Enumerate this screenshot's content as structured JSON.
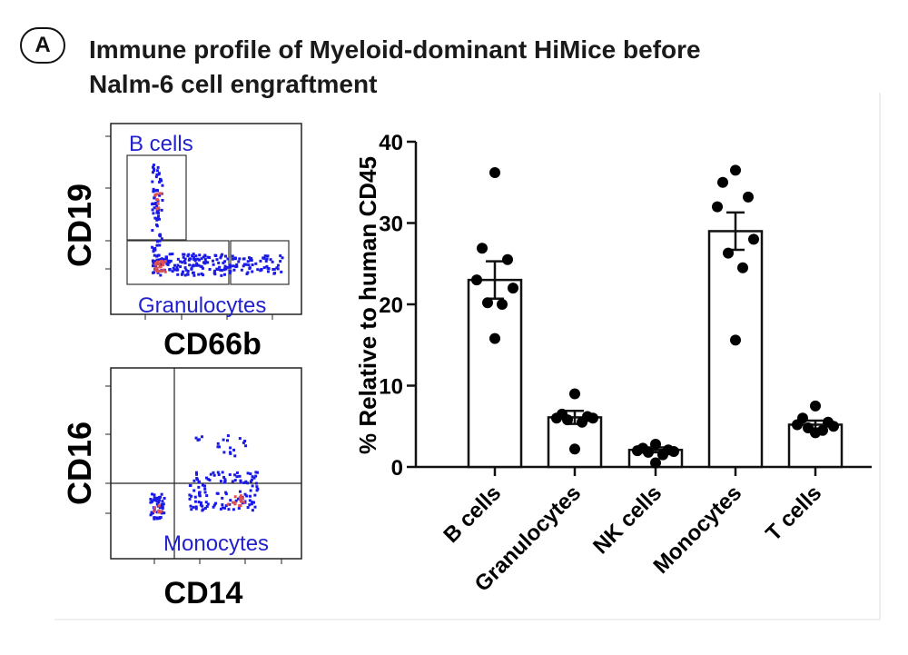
{
  "header": {
    "panel_letter": "A",
    "title_line1": "Immune profile of Myeloid-dominant HiMice before",
    "title_line2": "Nalm-6 cell engraftment"
  },
  "flow_plots": [
    {
      "y_label": "CD19",
      "x_label": "CD66b",
      "gates": [
        {
          "label": "B cells",
          "color": "#2222cc"
        },
        {
          "label": "Granulocytes",
          "color": "#2222cc"
        }
      ]
    },
    {
      "y_label": "CD16",
      "x_label": "CD14",
      "gates": [
        {
          "label": "Monocytes",
          "color": "#2222cc"
        }
      ]
    }
  ],
  "chart_data": {
    "type": "bar",
    "ylabel": "% Relative to human CD45",
    "ylim": [
      0,
      40
    ],
    "yticks": [
      0,
      10,
      20,
      30,
      40
    ],
    "categories": [
      "B cells",
      "Granulocytes",
      "NK cells",
      "Monocytes",
      "T cells"
    ],
    "values": [
      23,
      6.1,
      2.1,
      29,
      5.2
    ],
    "error_sem": [
      2.3,
      0.8,
      0.3,
      2.3,
      0.5
    ],
    "points": [
      [
        36.2,
        26.9,
        25.5,
        23.0,
        22.0,
        20.2,
        20.0,
        15.8
      ],
      [
        9.0,
        6.5,
        6.2,
        6.0,
        6.0,
        5.8,
        5.5,
        2.2
      ],
      [
        2.8,
        2.3,
        2.1,
        2.0,
        1.9,
        1.8,
        1.5,
        0.5
      ],
      [
        36.5,
        35.0,
        33.2,
        32.0,
        28.0,
        26.3,
        24.5,
        15.6
      ],
      [
        7.5,
        6.0,
        5.5,
        5.2,
        5.0,
        4.8,
        4.5,
        4.2
      ]
    ],
    "bar_color": "#ffffff",
    "point_color": "#000000",
    "grid": false
  }
}
